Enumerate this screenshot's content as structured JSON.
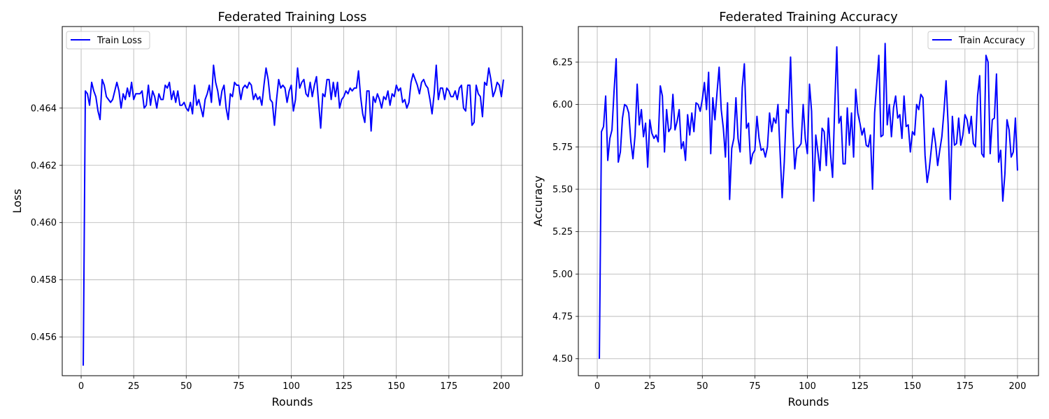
{
  "chart_data": [
    {
      "type": "line",
      "title": "Federated Training Loss",
      "xlabel": "Rounds",
      "ylabel": "Loss",
      "xlim": [
        -9,
        210
      ],
      "ylim": [
        0.45465,
        0.46685
      ],
      "xticks": [
        0,
        25,
        50,
        75,
        100,
        125,
        150,
        175,
        200
      ],
      "yticks": [
        0.456,
        0.458,
        0.46,
        0.462,
        0.464
      ],
      "ytick_labels": [
        "0.456",
        "0.458",
        "0.460",
        "0.462",
        "0.464"
      ],
      "grid": true,
      "legend": "upper-left",
      "color": "#0000ff",
      "series": [
        {
          "name": "Train Loss",
          "x_start": 1,
          "x_step": 1,
          "values": [
            0.455,
            0.4646,
            0.4645,
            0.4641,
            0.4649,
            0.4646,
            0.4644,
            0.4639,
            0.4636,
            0.465,
            0.4648,
            0.4644,
            0.4643,
            0.4642,
            0.4643,
            0.4646,
            0.4649,
            0.4646,
            0.464,
            0.4645,
            0.4643,
            0.4647,
            0.4644,
            0.4649,
            0.4643,
            0.4645,
            0.4645,
            0.4645,
            0.4646,
            0.464,
            0.4641,
            0.4648,
            0.4641,
            0.4646,
            0.4644,
            0.464,
            0.4645,
            0.4643,
            0.4643,
            0.4648,
            0.4647,
            0.4649,
            0.4643,
            0.4646,
            0.4642,
            0.4646,
            0.4641,
            0.4641,
            0.4642,
            0.464,
            0.4639,
            0.4642,
            0.4638,
            0.4648,
            0.4641,
            0.4643,
            0.464,
            0.4637,
            0.4643,
            0.4645,
            0.4648,
            0.4642,
            0.4655,
            0.4649,
            0.4646,
            0.4641,
            0.4646,
            0.4648,
            0.464,
            0.4636,
            0.4645,
            0.4644,
            0.4649,
            0.4648,
            0.4648,
            0.4643,
            0.4647,
            0.4648,
            0.4647,
            0.4649,
            0.4648,
            0.4643,
            0.4645,
            0.4643,
            0.4644,
            0.4641,
            0.4648,
            0.4654,
            0.465,
            0.4643,
            0.4642,
            0.4634,
            0.4643,
            0.465,
            0.4647,
            0.4648,
            0.4647,
            0.4642,
            0.4646,
            0.4648,
            0.4639,
            0.4643,
            0.4654,
            0.4647,
            0.4649,
            0.465,
            0.4645,
            0.4644,
            0.4649,
            0.4644,
            0.4648,
            0.4651,
            0.4642,
            0.4633,
            0.4645,
            0.4644,
            0.465,
            0.465,
            0.4643,
            0.4649,
            0.4644,
            0.4649,
            0.464,
            0.4643,
            0.4644,
            0.4646,
            0.4645,
            0.4647,
            0.4646,
            0.4647,
            0.4647,
            0.4653,
            0.4644,
            0.4638,
            0.4635,
            0.4646,
            0.4646,
            0.4632,
            0.4644,
            0.4642,
            0.4645,
            0.4643,
            0.464,
            0.4644,
            0.4643,
            0.4646,
            0.4641,
            0.4645,
            0.4644,
            0.4648,
            0.4646,
            0.4647,
            0.4642,
            0.4643,
            0.464,
            0.4642,
            0.4649,
            0.4652,
            0.465,
            0.4648,
            0.4645,
            0.4649,
            0.465,
            0.4648,
            0.4647,
            0.4643,
            0.4638,
            0.4645,
            0.4655,
            0.4643,
            0.4647,
            0.4647,
            0.4643,
            0.4647,
            0.4646,
            0.4644,
            0.4644,
            0.4646,
            0.4643,
            0.4647,
            0.4648,
            0.464,
            0.4639,
            0.4648,
            0.4648,
            0.4634,
            0.4635,
            0.4648,
            0.4645,
            0.4644,
            0.4637,
            0.4649,
            0.4648,
            0.4654,
            0.465,
            0.4644,
            0.4646,
            0.4649,
            0.4648,
            0.4644,
            0.465
          ]
        }
      ]
    },
    {
      "type": "line",
      "title": "Federated Training Accuracy",
      "xlabel": "Rounds",
      "ylabel": "Accuracy",
      "xlim": [
        -9,
        210
      ],
      "ylim": [
        4.4,
        6.46
      ],
      "xticks": [
        0,
        25,
        50,
        75,
        100,
        125,
        150,
        175,
        200
      ],
      "yticks": [
        4.5,
        4.75,
        5.0,
        5.25,
        5.5,
        5.75,
        6.0,
        6.25
      ],
      "ytick_labels": [
        "4.50",
        "4.75",
        "5.00",
        "5.25",
        "5.50",
        "5.75",
        "6.00",
        "6.25"
      ],
      "grid": true,
      "legend": "upper-right",
      "color": "#0000ff",
      "series": [
        {
          "name": "Train Accuracy",
          "x_start": 1,
          "x_step": 1,
          "values": [
            4.5,
            5.84,
            5.87,
            6.05,
            5.67,
            5.8,
            5.85,
            6.08,
            6.27,
            5.66,
            5.72,
            5.92,
            6.0,
            5.99,
            5.95,
            5.78,
            5.68,
            5.82,
            6.12,
            5.88,
            5.97,
            5.81,
            5.89,
            5.63,
            5.91,
            5.83,
            5.8,
            5.82,
            5.78,
            6.11,
            6.05,
            5.72,
            5.97,
            5.84,
            5.86,
            6.06,
            5.85,
            5.9,
            5.97,
            5.74,
            5.78,
            5.67,
            5.94,
            5.82,
            5.95,
            5.84,
            6.01,
            6.0,
            5.96,
            6.03,
            6.13,
            5.97,
            6.19,
            5.71,
            6.04,
            5.91,
            6.07,
            6.22,
            5.97,
            5.86,
            5.69,
            6.01,
            5.44,
            5.74,
            5.8,
            6.04,
            5.8,
            5.72,
            6.1,
            6.24,
            5.86,
            5.89,
            5.65,
            5.71,
            5.73,
            5.93,
            5.8,
            5.73,
            5.74,
            5.69,
            5.75,
            5.95,
            5.84,
            5.92,
            5.89,
            6.0,
            5.72,
            5.45,
            5.66,
            5.97,
            5.95,
            6.28,
            5.87,
            5.62,
            5.74,
            5.75,
            5.77,
            6.0,
            5.8,
            5.71,
            6.12,
            5.96,
            5.43,
            5.82,
            5.72,
            5.61,
            5.86,
            5.84,
            5.64,
            5.92,
            5.71,
            5.57,
            5.98,
            6.34,
            5.89,
            5.93,
            5.65,
            5.65,
            5.98,
            5.76,
            5.95,
            5.69,
            6.09,
            5.95,
            5.89,
            5.82,
            5.86,
            5.76,
            5.75,
            5.82,
            5.5,
            5.95,
            6.12,
            6.29,
            5.81,
            5.82,
            6.36,
            5.88,
            6.0,
            5.81,
            5.98,
            6.05,
            5.92,
            5.94,
            5.8,
            6.05,
            5.87,
            5.88,
            5.72,
            5.84,
            5.82,
            6.0,
            5.97,
            6.06,
            6.04,
            5.7,
            5.54,
            5.62,
            5.74,
            5.86,
            5.77,
            5.64,
            5.73,
            5.81,
            5.96,
            6.14,
            5.88,
            5.44,
            5.93,
            5.76,
            5.77,
            5.92,
            5.76,
            5.82,
            5.94,
            5.91,
            5.83,
            5.93,
            5.77,
            5.75,
            6.05,
            6.17,
            5.71,
            5.69,
            6.29,
            6.25,
            5.71,
            5.91,
            5.92,
            6.18,
            5.66,
            5.73,
            5.43,
            5.59,
            5.91,
            5.85,
            5.69,
            5.72,
            5.92,
            5.61
          ]
        }
      ]
    }
  ]
}
